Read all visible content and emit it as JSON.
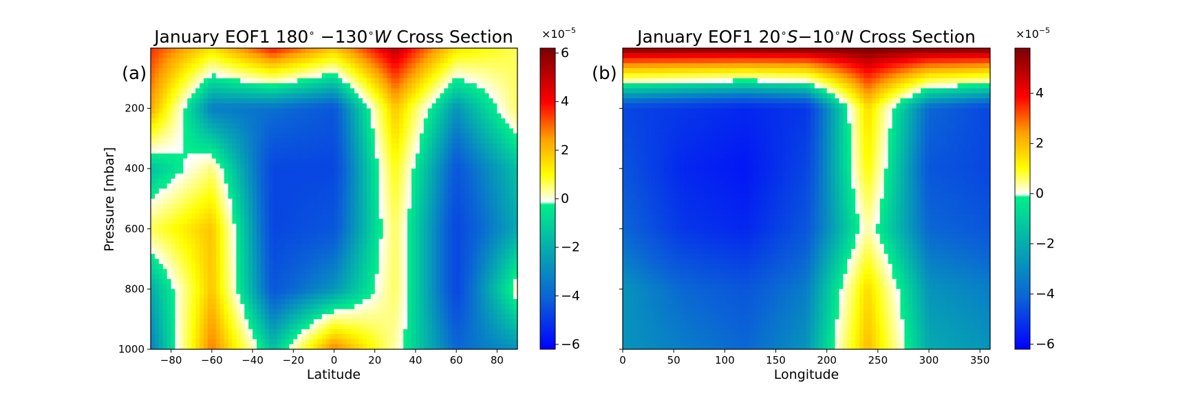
{
  "chart_data": [
    {
      "type": "heatmap",
      "panel_label": "(a)",
      "title": "January EOF1 180° −130°W Cross Section",
      "title_parts": {
        "lead": "January EOF1 180",
        "mid1": " −130",
        "italic": "W",
        "tail": " Cross Section"
      },
      "xlabel": "Latitude",
      "ylabel": "Pressure [mbar]",
      "xlim": [
        -90,
        90
      ],
      "ylim": [
        1000,
        0
      ],
      "x_ticks": [
        -80,
        -60,
        -40,
        -20,
        0,
        20,
        40,
        60,
        80
      ],
      "x_tick_labels": [
        "−80",
        "−60",
        "−40",
        "−20",
        "0",
        "20",
        "40",
        "60",
        "80"
      ],
      "y_ticks": [
        200,
        400,
        600,
        800,
        1000
      ],
      "y_tick_labels": [
        "200",
        "400",
        "600",
        "800",
        "1000"
      ],
      "x_grid": [
        -90,
        -60,
        -30,
        0,
        30,
        60,
        90
      ],
      "y_grid": [
        0,
        200,
        400,
        600,
        800,
        1000
      ],
      "z": [
        [
          4.2,
          2.0,
          4.5,
          2.5,
          5.5,
          2.0,
          1.0
        ],
        [
          3.0,
          -2.5,
          -2.8,
          -3.5,
          2.5,
          -2.0,
          1.0
        ],
        [
          -1.0,
          0.8,
          -4.0,
          -4.0,
          1.5,
          -3.5,
          -1.0
        ],
        [
          1.0,
          2.5,
          -4.0,
          -3.5,
          1.0,
          -4.0,
          -1.5
        ],
        [
          -1.5,
          2.5,
          -3.5,
          -2.0,
          1.0,
          -4.0,
          0.5
        ],
        [
          -2.5,
          3.5,
          -1.0,
          3.5,
          0.5,
          -3.0,
          -2.0
        ]
      ],
      "colorbar": {
        "ticks": [
          -6,
          -4,
          -2,
          0,
          2,
          4,
          6
        ],
        "tick_labels": [
          "−6",
          "−4",
          "−2",
          "0",
          "2",
          "4",
          "6"
        ],
        "range": [
          -6.2,
          6.2
        ],
        "multiplier": "×10",
        "exponent": "−5"
      }
    },
    {
      "type": "heatmap",
      "panel_label": "(b)",
      "title": "January EOF1 20°S−10°N Cross Section",
      "title_parts": {
        "lead": "January EOF1 20",
        "s": "S",
        "mid": "−10",
        "n": "N",
        "tail": " Cross Section"
      },
      "xlabel": "Longitude",
      "xlim": [
        0,
        360
      ],
      "ylim": [
        1000,
        0
      ],
      "x_ticks": [
        0,
        50,
        100,
        150,
        200,
        250,
        300,
        350
      ],
      "x_tick_labels": [
        "0",
        "50",
        "100",
        "150",
        "200",
        "250",
        "300",
        "350"
      ],
      "y_ticks": [
        200,
        400,
        600,
        800,
        1000
      ],
      "x_grid": [
        0,
        60,
        120,
        180,
        240,
        300,
        360
      ],
      "y_grid": [
        0,
        200,
        400,
        600,
        800,
        1000
      ],
      "z": [
        [
          5.8,
          5.8,
          5.8,
          5.8,
          5.8,
          5.8,
          5.8
        ],
        [
          -4.0,
          -4.5,
          -5.0,
          -4.5,
          2.0,
          -3.0,
          -4.0
        ],
        [
          -3.5,
          -5.0,
          -5.5,
          -4.0,
          1.5,
          -3.5,
          -4.0
        ],
        [
          -3.0,
          -4.5,
          -5.0,
          -3.5,
          0.5,
          -3.0,
          -3.5
        ],
        [
          -2.0,
          -3.0,
          -3.5,
          -2.5,
          2.0,
          -2.0,
          -2.5
        ],
        [
          -2.0,
          -2.5,
          -3.0,
          -2.0,
          2.5,
          -1.5,
          -2.0
        ]
      ],
      "colorbar": {
        "ticks": [
          -6,
          -4,
          -2,
          0,
          2,
          4
        ],
        "tick_labels": [
          "−6",
          "−4",
          "−2",
          "0",
          "2",
          "4"
        ],
        "range": [
          -6.2,
          5.8
        ],
        "multiplier": "×10",
        "exponent": "−5"
      }
    }
  ],
  "colors": {
    "colormap": [
      "#0000ff",
      "#0b63d6",
      "#00ee8a",
      "#ffffff",
      "#ffff00",
      "#ff9f00",
      "#ff0000",
      "#7a0000"
    ]
  }
}
